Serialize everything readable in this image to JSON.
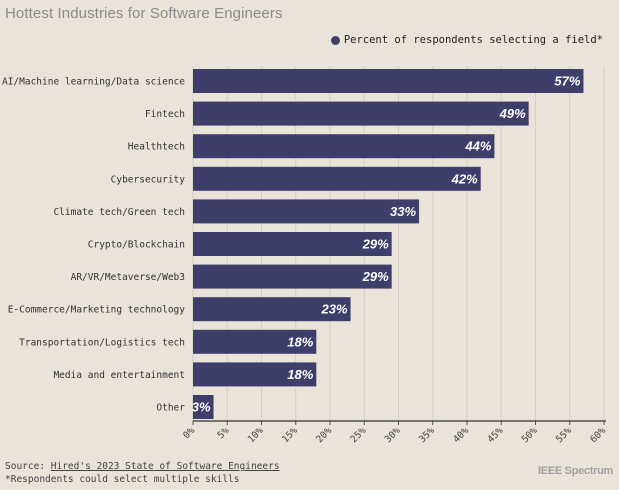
{
  "chart_data": {
    "type": "bar",
    "orientation": "horizontal",
    "title": "Hottest Industries for Software Engineers",
    "legend": {
      "label": "Percent of respondents selecting a field*",
      "placement": "top-right"
    },
    "categories": [
      "AI/Machine learning/Data science",
      "Fintech",
      "Healthtech",
      "Cybersecurity",
      "Climate tech/Green tech",
      "Crypto/Blockchain",
      "AR/VR/Metaverse/Web3",
      "E-Commerce/Marketing technology",
      "Transportation/Logistics tech",
      "Media and entertainment",
      "Other"
    ],
    "values": [
      57,
      49,
      44,
      42,
      33,
      29,
      29,
      23,
      18,
      18,
      3
    ],
    "value_labels": [
      "57%",
      "49%",
      "44%",
      "42%",
      "33%",
      "29%",
      "29%",
      "23%",
      "18%",
      "18%",
      "3%"
    ],
    "xlim": [
      0,
      60
    ],
    "xticks": [
      0,
      5,
      10,
      15,
      20,
      25,
      30,
      35,
      40,
      45,
      50,
      55,
      60
    ],
    "xtick_labels": [
      "0%",
      "5%",
      "10%",
      "15%",
      "20%",
      "25%",
      "30%",
      "35%",
      "40%",
      "45%",
      "50%",
      "55%",
      "60%"
    ],
    "grid": true,
    "bar_color": "#3e3e6b"
  },
  "footer": {
    "source_prefix": "Source: ",
    "source_link": "Hired's 2023 State of Software Engineers",
    "note": "*Respondents could select multiple skills",
    "brand": "IEEE Spectrum"
  }
}
